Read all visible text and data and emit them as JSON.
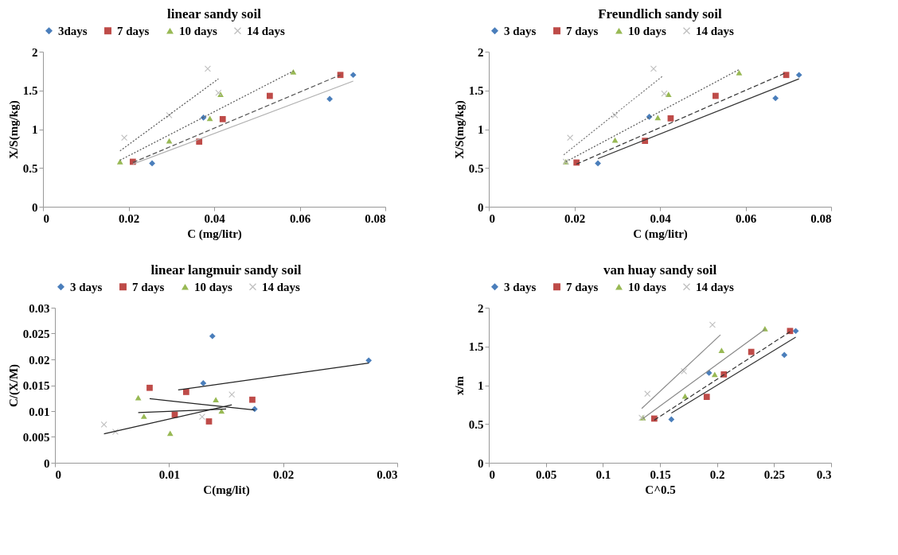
{
  "chart_data": [
    {
      "type": "scatter",
      "title": "linear sandy soil",
      "xlabel": "C (mg/litr)",
      "ylabel": "X/S(mg/kg)",
      "xlim": [
        0,
        0.08
      ],
      "xticks": [
        0,
        0.02,
        0.04,
        0.06,
        0.08
      ],
      "ylim": [
        0,
        2
      ],
      "yticks": [
        0,
        0.5,
        1,
        1.5,
        2
      ],
      "legend": "top",
      "series": [
        {
          "name": "3days",
          "marker": "diamond",
          "color": "#4a7ebb",
          "x": [
            0.0255,
            0.0375,
            0.067,
            0.0725
          ],
          "values": [
            0.56,
            1.15,
            1.39,
            1.7
          ]
        },
        {
          "name": "7 days",
          "type": "scatter",
          "marker": "square",
          "color": "#be4b48",
          "x": [
            0.021,
            0.0365,
            0.042,
            0.053,
            0.0695
          ],
          "values": [
            0.58,
            0.84,
            1.13,
            1.43,
            1.7
          ]
        },
        {
          "name": "10 days",
          "type": "scatter",
          "marker": "triangle",
          "color": "#98b954",
          "x": [
            0.018,
            0.0295,
            0.039,
            0.0415,
            0.0585
          ],
          "values": [
            0.58,
            0.85,
            1.14,
            1.45,
            1.74
          ]
        },
        {
          "name": "14 days",
          "type": "scatter",
          "marker": "cross",
          "color": "#bfbfbf",
          "x": [
            0.019,
            0.0295,
            0.0385,
            0.041
          ],
          "values": [
            0.89,
            1.18,
            1.78,
            1.47
          ]
        },
        {
          "type": "line",
          "line_style": "solid",
          "color": "#b0b0b0",
          "x": [
            0.021,
            0.0725
          ],
          "values": [
            0.55,
            1.62
          ]
        },
        {
          "type": "line",
          "line_style": "dashed",
          "color": "#555555",
          "x": [
            0.021,
            0.0695
          ],
          "values": [
            0.57,
            1.7
          ]
        },
        {
          "type": "line",
          "line_style": "dotted",
          "color": "#555555",
          "x": [
            0.018,
            0.0585
          ],
          "values": [
            0.6,
            1.75
          ]
        },
        {
          "type": "line",
          "line_style": "dotted",
          "color": "#555555",
          "x": [
            0.018,
            0.041
          ],
          "values": [
            0.72,
            1.65
          ]
        }
      ]
    },
    {
      "type": "scatter",
      "title": "Freundlich sandy soil",
      "xlabel": "C (mg/litr)",
      "ylabel": "X/S(mg/kg)",
      "xlim": [
        0,
        0.08
      ],
      "xticks": [
        0,
        0.02,
        0.04,
        0.06,
        0.08
      ],
      "ylim": [
        0,
        2
      ],
      "yticks": [
        0,
        0.5,
        1,
        1.5,
        2
      ],
      "legend": "top",
      "series": [
        {
          "name": "3 days",
          "marker": "diamond",
          "color": "#4a7ebb",
          "x": [
            0.0255,
            0.0375,
            0.067,
            0.0725
          ],
          "values": [
            0.56,
            1.16,
            1.4,
            1.7
          ]
        },
        {
          "name": "7 days",
          "marker": "square",
          "color": "#be4b48",
          "x": [
            0.0205,
            0.0365,
            0.0425,
            0.053,
            0.0695
          ],
          "values": [
            0.57,
            0.85,
            1.14,
            1.43,
            1.7
          ]
        },
        {
          "name": "10 days",
          "type": "scatter",
          "marker": "triangle",
          "color": "#98b954",
          "x": [
            0.018,
            0.0295,
            0.0395,
            0.042,
            0.0585
          ],
          "values": [
            0.58,
            0.86,
            1.15,
            1.45,
            1.73
          ]
        },
        {
          "name": "14 days",
          "type": "scatter",
          "marker": "cross",
          "color": "#bfbfbf",
          "x": [
            0.018,
            0.019,
            0.0295,
            0.0385,
            0.041
          ],
          "values": [
            0.58,
            0.89,
            1.18,
            1.78,
            1.46
          ]
        },
        {
          "type": "line",
          "line_style": "solid",
          "color": "#333333",
          "x": [
            0.0255,
            0.0725
          ],
          "values": [
            0.62,
            1.65
          ]
        },
        {
          "type": "line",
          "line_style": "dashed",
          "color": "#333333",
          "x": [
            0.0205,
            0.0695
          ],
          "values": [
            0.55,
            1.73
          ]
        },
        {
          "type": "line",
          "line_style": "dotted",
          "color": "#555555",
          "x": [
            0.018,
            0.0585
          ],
          "values": [
            0.58,
            1.77
          ]
        },
        {
          "type": "line",
          "line_style": "dotted",
          "color": "#777777",
          "x": [
            0.0175,
            0.0405
          ],
          "values": [
            0.67,
            1.68
          ]
        }
      ]
    },
    {
      "type": "scatter",
      "title": "linear langmuir sandy soil",
      "xlabel": "C(mg/lit)",
      "ylabel": "C/(X/M)",
      "xlim": [
        0,
        0.03
      ],
      "xticks": [
        0,
        0.01,
        0.02,
        0.03
      ],
      "ylim": [
        0,
        0.03
      ],
      "yticks": [
        0,
        0.005,
        0.01,
        0.015,
        0.02,
        0.025,
        0.03
      ],
      "legend": "top",
      "series": [
        {
          "name": "3 days",
          "marker": "diamond",
          "color": "#4a7ebb",
          "x": [
            0.013,
            0.0138,
            0.0175,
            0.0275
          ],
          "values": [
            0.0154,
            0.0245,
            0.0104,
            0.0198
          ]
        },
        {
          "name": "7 days",
          "type": "scatter",
          "marker": "square",
          "color": "#be4b48",
          "x": [
            0.0083,
            0.0105,
            0.0115,
            0.0135,
            0.0173
          ],
          "values": [
            0.0145,
            0.0093,
            0.0137,
            0.008,
            0.0122
          ]
        },
        {
          "name": "10 days",
          "type": "scatter",
          "marker": "triangle",
          "color": "#98b954",
          "x": [
            0.0073,
            0.0078,
            0.0101,
            0.0141,
            0.0146
          ],
          "values": [
            0.0126,
            0.009,
            0.0057,
            0.0122,
            0.01
          ]
        },
        {
          "name": "14 days",
          "type": "scatter",
          "marker": "cross",
          "color": "#bfbfbf",
          "x": [
            0.0043,
            0.0053,
            0.0129,
            0.0155
          ],
          "values": [
            0.0074,
            0.006,
            0.0089,
            0.0132
          ]
        },
        {
          "type": "line",
          "line_style": "solid",
          "color": "#222222",
          "x": [
            0.0108,
            0.0275
          ],
          "values": [
            0.0141,
            0.0193
          ]
        },
        {
          "type": "line",
          "line_style": "solid",
          "color": "#222222",
          "x": [
            0.0083,
            0.0175
          ],
          "values": [
            0.0124,
            0.0102
          ]
        },
        {
          "type": "line",
          "line_style": "solid",
          "color": "#222222",
          "x": [
            0.0073,
            0.015
          ],
          "values": [
            0.0097,
            0.0104
          ]
        },
        {
          "type": "line",
          "line_style": "solid",
          "color": "#222222",
          "x": [
            0.0043,
            0.0155
          ],
          "values": [
            0.0056,
            0.0112
          ]
        }
      ]
    },
    {
      "type": "scatter",
      "title": "van huay sandy soil",
      "xlabel": "C^0.5",
      "ylabel": "x/m",
      "xlim": [
        0,
        0.3
      ],
      "xticks": [
        0,
        0.05,
        0.1,
        0.15,
        0.2,
        0.25,
        0.3
      ],
      "ylim": [
        0,
        2
      ],
      "yticks": [
        0,
        0.5,
        1,
        1.5,
        2
      ],
      "legend": "top",
      "series": [
        {
          "name": "3 days",
          "marker": "diamond",
          "color": "#4a7ebb",
          "x": [
            0.16,
            0.193,
            0.259,
            0.269
          ],
          "values": [
            0.56,
            1.16,
            1.39,
            1.7
          ]
        },
        {
          "name": "7 days",
          "type": "scatter",
          "marker": "square",
          "color": "#be4b48",
          "x": [
            0.145,
            0.191,
            0.206,
            0.23,
            0.264
          ],
          "values": [
            0.57,
            0.85,
            1.14,
            1.43,
            1.7
          ]
        },
        {
          "name": "10 days",
          "type": "scatter",
          "marker": "triangle",
          "color": "#98b954",
          "x": [
            0.135,
            0.172,
            0.198,
            0.204,
            0.242
          ],
          "values": [
            0.58,
            0.86,
            1.14,
            1.45,
            1.73
          ]
        },
        {
          "name": "14 days",
          "type": "scatter",
          "marker": "cross",
          "color": "#bfbfbf",
          "x": [
            0.134,
            0.139,
            0.171,
            0.196
          ],
          "values": [
            0.58,
            0.89,
            1.18,
            1.78
          ]
        },
        {
          "type": "line",
          "line_style": "solid",
          "color": "#333333",
          "x": [
            0.16,
            0.269
          ],
          "values": [
            0.64,
            1.62
          ]
        },
        {
          "type": "line",
          "line_style": "dashed",
          "color": "#333333",
          "x": [
            0.145,
            0.264
          ],
          "values": [
            0.55,
            1.69
          ]
        },
        {
          "type": "line",
          "line_style": "solid",
          "color": "#888888",
          "x": [
            0.135,
            0.242
          ],
          "values": [
            0.57,
            1.72
          ]
        },
        {
          "type": "line",
          "line_style": "solid",
          "color": "#888888",
          "x": [
            0.134,
            0.203
          ],
          "values": [
            0.7,
            1.65
          ]
        }
      ]
    }
  ]
}
